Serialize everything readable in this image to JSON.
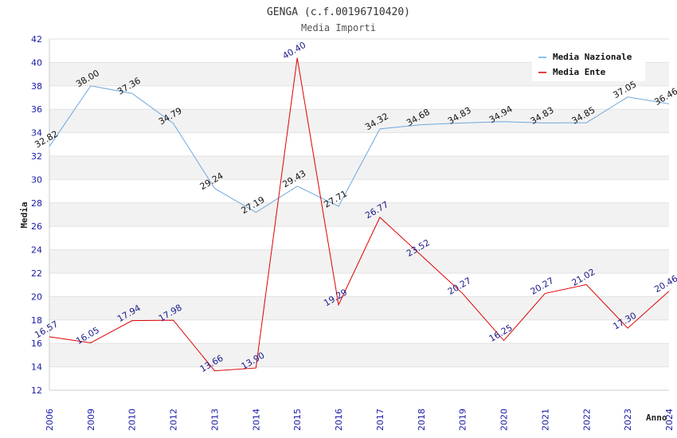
{
  "chart_data": {
    "type": "line",
    "title": "GENGA (c.f.00196710420)",
    "subtitle": "Media Importi",
    "xlabel": "Anno",
    "ylabel": "Media",
    "ylim": [
      12,
      42
    ],
    "yticks": [
      12,
      14,
      16,
      18,
      20,
      22,
      24,
      26,
      28,
      30,
      32,
      34,
      36,
      38,
      40,
      42
    ],
    "categories": [
      "2006",
      "2009",
      "2010",
      "2012",
      "2013",
      "2014",
      "2015",
      "2016",
      "2017",
      "2018",
      "2019",
      "2020",
      "2021",
      "2022",
      "2023",
      "2024"
    ],
    "series": [
      {
        "name": "Media Nazionale",
        "color": "#6fa8dc",
        "values": [
          32.82,
          38.0,
          37.36,
          34.79,
          29.24,
          27.19,
          29.43,
          27.71,
          34.32,
          34.68,
          34.83,
          34.94,
          34.83,
          34.85,
          37.05,
          36.46
        ],
        "labels": [
          "32.82",
          "38.00",
          "37.36",
          "34.79",
          "29.24",
          "27.19",
          "29.43",
          "27.71",
          "34.32",
          "34.68",
          "34.83",
          "34.94",
          "34.83",
          "34.85",
          "37.05",
          "36.46"
        ]
      },
      {
        "name": "Media Ente",
        "color": "#dd0000",
        "values": [
          16.57,
          16.05,
          17.94,
          17.98,
          13.66,
          13.9,
          40.4,
          19.29,
          26.77,
          23.52,
          20.27,
          16.25,
          20.27,
          21.02,
          17.3,
          20.46
        ],
        "labels": [
          "16.57",
          "16.05",
          "17.94",
          "17.98",
          "13.66",
          "13.90",
          "40.40",
          "19.29",
          "26.77",
          "23.52",
          "20.27",
          "16.25",
          "20.27",
          "21.02",
          "17.30",
          "20.46"
        ]
      }
    ],
    "grid": true,
    "legend_position": "top-right"
  }
}
